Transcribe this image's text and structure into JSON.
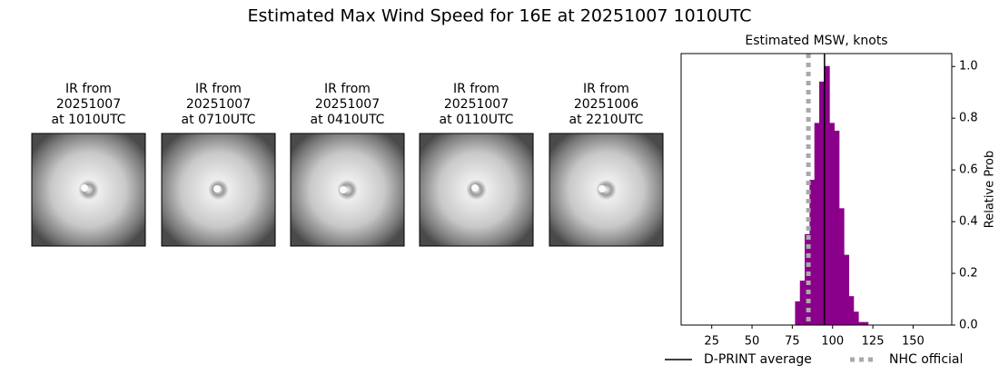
{
  "title": "Estimated Max Wind Speed for 16E at 20251007 1010UTC",
  "images": [
    {
      "lines": [
        "IR from",
        "20251007",
        "at 1010UTC"
      ]
    },
    {
      "lines": [
        "IR from",
        "20251007",
        "at 0710UTC"
      ]
    },
    {
      "lines": [
        "IR from",
        "20251007",
        "at 0410UTC"
      ]
    },
    {
      "lines": [
        "IR from",
        "20251007",
        "at 0110UTC"
      ]
    },
    {
      "lines": [
        "IR from",
        "20251006",
        "at 2210UTC"
      ]
    }
  ],
  "chart_data": {
    "type": "histogram",
    "title": "Estimated MSW, knots",
    "y_label": "Relative Prob",
    "color": "#8b008b",
    "bins": [
      17,
      20,
      23,
      26,
      29,
      32,
      35,
      38,
      41,
      44,
      47,
      50,
      53,
      56,
      59,
      62,
      65,
      68,
      71,
      74,
      77,
      80,
      83,
      86,
      89,
      92,
      95,
      98,
      101,
      104,
      107,
      110,
      113,
      116,
      119,
      122,
      125,
      128,
      131,
      134,
      137,
      140,
      143,
      146,
      149,
      152,
      155,
      158,
      161,
      164,
      167,
      170
    ],
    "values": [
      0,
      0,
      0,
      0,
      0,
      0,
      0,
      0,
      0,
      0,
      0,
      0,
      0,
      0,
      0,
      0,
      0,
      0,
      0,
      0,
      0.09,
      0.17,
      0.35,
      0.56,
      0.78,
      0.94,
      1.0,
      0.78,
      0.75,
      0.45,
      0.27,
      0.11,
      0.05,
      0.01,
      0.01,
      0,
      0,
      0,
      0,
      0,
      0,
      0,
      0,
      0,
      0,
      0,
      0,
      0,
      0,
      0,
      0
    ],
    "xlim": [
      6,
      174
    ],
    "ylim": [
      0,
      1.05
    ],
    "xticks": [
      25,
      50,
      75,
      100,
      125,
      150
    ],
    "yticks": [
      {
        "value": 0,
        "label": "0.0"
      },
      0.2,
      0.4,
      0.6,
      0.8,
      {
        "value": 1,
        "label": "1.0"
      }
    ],
    "lines": [
      {
        "name": "D-PRINT average",
        "value": 95,
        "color": "#000000",
        "style": "solid"
      },
      {
        "name": "NHC official",
        "value": 85,
        "color": "#a9a9a9",
        "style": "dotted"
      }
    ]
  }
}
